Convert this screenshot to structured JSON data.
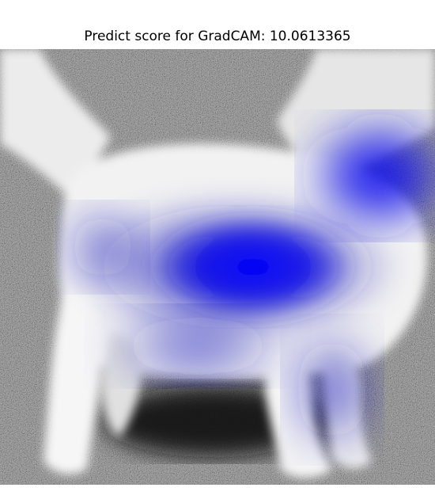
{
  "figure": {
    "title": "Predict score for GradCAM: 10.0613365",
    "image_icon": "dog-gradcam-heatmap-image",
    "colors": {
      "heatmap": "#0000ff",
      "background_dark": "#3a3a3a",
      "background_gray": "#7a7a7a",
      "fur": "#f4f4f4"
    }
  }
}
